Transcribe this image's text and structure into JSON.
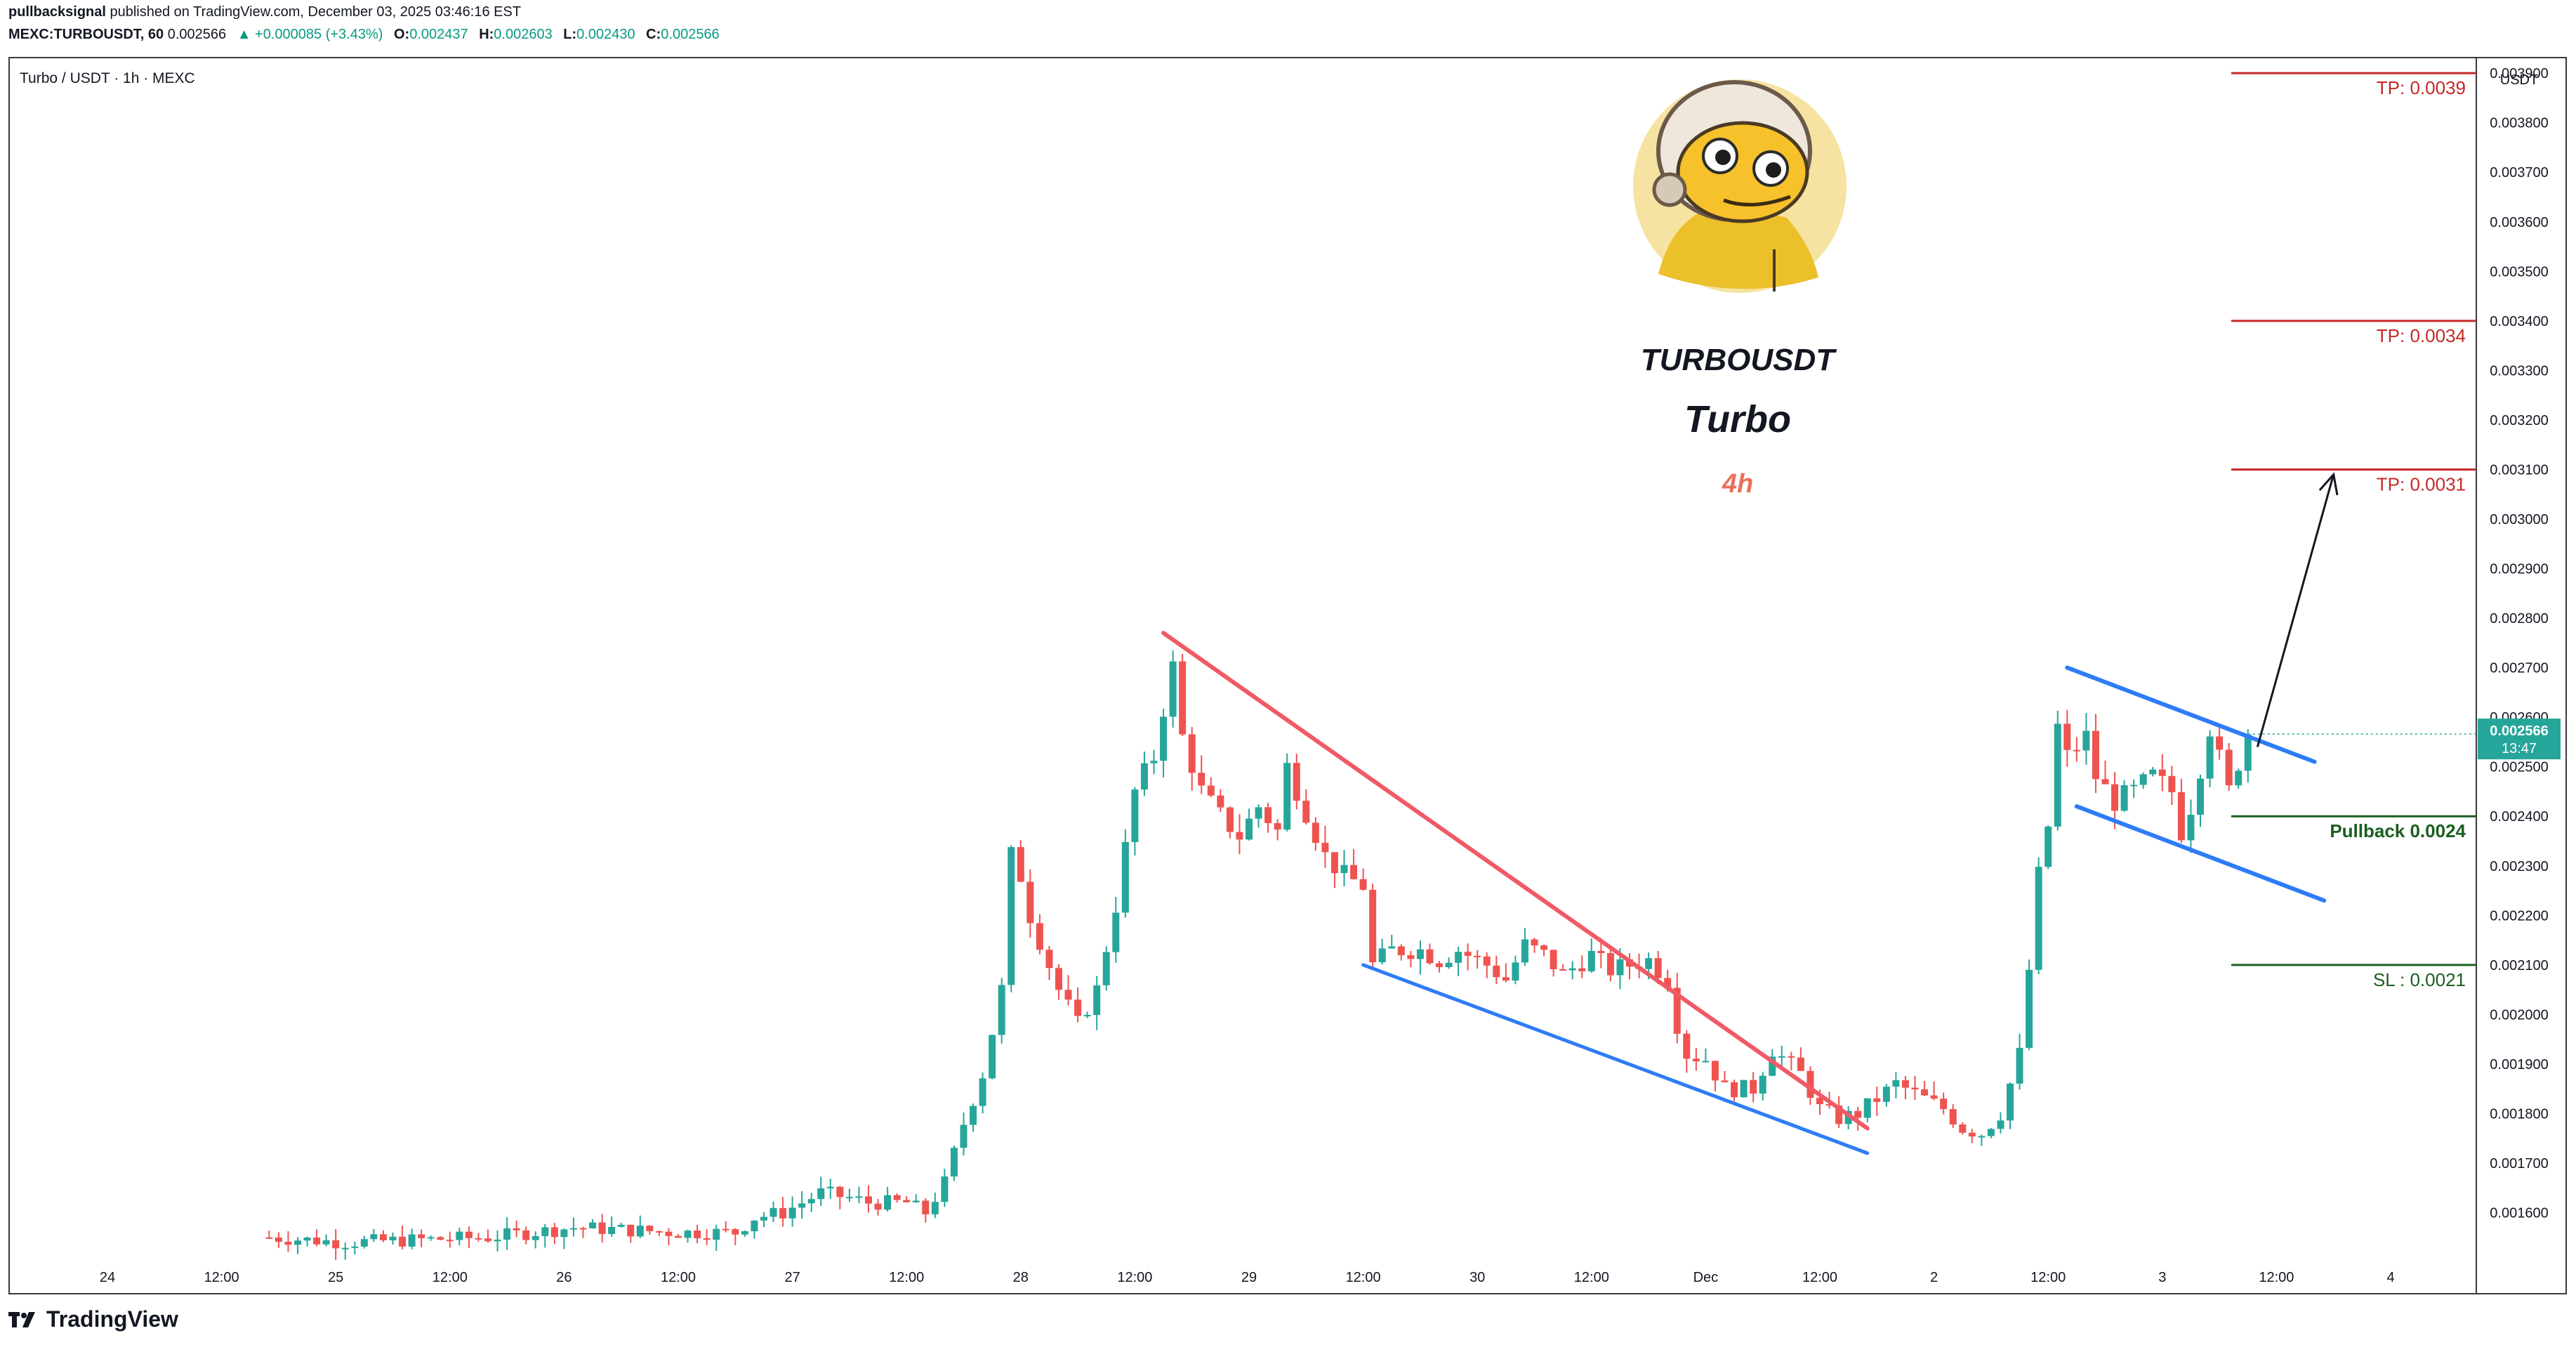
{
  "header": {
    "author": "pullbacksignal",
    "published_text": " published on TradingView.com, December 03, 2025 03:46:16 EST",
    "symbol_line": "MEXC:TURBOUSDT, 60",
    "last_price": "0.002566",
    "change_arrow": "▲",
    "change": "+0.000085 (+3.43%)",
    "o_label": "O:",
    "o_value": "0.002437",
    "h_label": "H:",
    "h_value": "0.002603",
    "l_label": "L:",
    "l_value": "0.002430",
    "c_label": "C:",
    "c_value": "0.002566"
  },
  "pair_label": "Turbo / USDT · 1h · MEXC",
  "currency_label": "USDT",
  "price_tag": {
    "price": "0.002566",
    "countdown": "13:47"
  },
  "logo": {
    "ticker": "TURBOUSDT",
    "name": "Turbo",
    "timeframe": "4h"
  },
  "footer": {
    "brand": "TradingView"
  },
  "colors": {
    "up": "#26a69a",
    "down": "#ef5350",
    "wedge_top": "#f05a66",
    "channel": "#2e7cf6",
    "tp": "#c62828",
    "pullback": "#1b5e20",
    "sl": "#1b5e20"
  },
  "chart_data": {
    "type": "candlestick",
    "title": "",
    "xlabel": "",
    "ylabel": "",
    "ylim": [
      0.00151,
      0.00393
    ],
    "y_ticks": [
      "0.003900",
      "0.003800",
      "0.003700",
      "0.003600",
      "0.003500",
      "0.003400",
      "0.003300",
      "0.003200",
      "0.003100",
      "0.003000",
      "0.002900",
      "0.002800",
      "0.002700",
      "0.002600",
      "0.002500",
      "0.002400",
      "0.002300",
      "0.002200",
      "0.002100",
      "0.002000",
      "0.001900",
      "0.001800",
      "0.001700",
      "0.001600"
    ],
    "x_ticks": [
      {
        "label": "24",
        "t": 0
      },
      {
        "label": "12:00",
        "t": 12
      },
      {
        "label": "25",
        "t": 24
      },
      {
        "label": "12:00",
        "t": 36
      },
      {
        "label": "26",
        "t": 48
      },
      {
        "label": "12:00",
        "t": 60
      },
      {
        "label": "27",
        "t": 72
      },
      {
        "label": "12:00",
        "t": 84
      },
      {
        "label": "28",
        "t": 96
      },
      {
        "label": "12:00",
        "t": 108
      },
      {
        "label": "29",
        "t": 120
      },
      {
        "label": "12:00",
        "t": 132
      },
      {
        "label": "30",
        "t": 144
      },
      {
        "label": "12:00",
        "t": 156
      },
      {
        "label": "Dec",
        "t": 168
      },
      {
        "label": "12:00",
        "t": 180
      },
      {
        "label": "2",
        "t": 192
      },
      {
        "label": "12:00",
        "t": 204
      },
      {
        "label": "3",
        "t": 216
      },
      {
        "label": "12:00",
        "t": 228
      },
      {
        "label": "4",
        "t": 240
      }
    ],
    "candle_anchors": [
      [
        17,
        0.00155
      ],
      [
        25,
        0.00154
      ],
      [
        40,
        0.00155
      ],
      [
        49,
        0.00157
      ],
      [
        60,
        0.00156
      ],
      [
        66,
        0.00156
      ],
      [
        68,
        0.00159
      ],
      [
        71,
        0.0016
      ],
      [
        75,
        0.00164
      ],
      [
        78,
        0.00163
      ],
      [
        80,
        0.00162
      ],
      [
        84,
        0.00162
      ],
      [
        86,
        0.0016
      ],
      [
        88,
        0.00166
      ],
      [
        90,
        0.00178
      ],
      [
        92,
        0.00188
      ],
      [
        94,
        0.00205
      ],
      [
        95,
        0.00232
      ],
      [
        96,
        0.00228
      ],
      [
        97,
        0.0022
      ],
      [
        98,
        0.00215
      ],
      [
        100,
        0.00205
      ],
      [
        102,
        0.00198
      ],
      [
        104,
        0.00205
      ],
      [
        106,
        0.00222
      ],
      [
        108,
        0.00245
      ],
      [
        110,
        0.00252
      ],
      [
        111,
        0.00262
      ],
      [
        112,
        0.0027
      ],
      [
        113,
        0.00256
      ],
      [
        115,
        0.00245
      ],
      [
        117,
        0.0024
      ],
      [
        119,
        0.00236
      ],
      [
        121,
        0.00242
      ],
      [
        123,
        0.00237
      ],
      [
        124,
        0.0025
      ],
      [
        126,
        0.00241
      ],
      [
        128,
        0.00232
      ],
      [
        130,
        0.00228
      ],
      [
        132,
        0.00226
      ],
      [
        133,
        0.0021
      ],
      [
        135,
        0.00213
      ],
      [
        138,
        0.00213
      ],
      [
        140,
        0.00211
      ],
      [
        142,
        0.00213
      ],
      [
        145,
        0.0021
      ],
      [
        147,
        0.00207
      ],
      [
        149,
        0.00214
      ],
      [
        151,
        0.00212
      ],
      [
        153,
        0.00208
      ],
      [
        156,
        0.00212
      ],
      [
        158,
        0.00209
      ],
      [
        160,
        0.0021
      ],
      [
        162,
        0.00211
      ],
      [
        164,
        0.00207
      ],
      [
        165,
        0.00198
      ],
      [
        166,
        0.00192
      ],
      [
        168,
        0.00191
      ],
      [
        170,
        0.00185
      ],
      [
        173,
        0.00185
      ],
      [
        175,
        0.00193
      ],
      [
        178,
        0.00188
      ],
      [
        180,
        0.00181
      ],
      [
        182,
        0.00179
      ],
      [
        184,
        0.0018
      ],
      [
        186,
        0.00183
      ],
      [
        188,
        0.00186
      ],
      [
        190,
        0.00184
      ],
      [
        192,
        0.00182
      ],
      [
        193,
        0.00181
      ],
      [
        195,
        0.00177
      ],
      [
        197,
        0.00176
      ],
      [
        199,
        0.0018
      ],
      [
        201,
        0.00192
      ],
      [
        202,
        0.00209
      ],
      [
        203,
        0.00228
      ],
      [
        204,
        0.00238
      ],
      [
        205,
        0.00258
      ],
      [
        206,
        0.00252
      ],
      [
        208,
        0.00256
      ],
      [
        209,
        0.00248
      ],
      [
        211,
        0.00243
      ],
      [
        213,
        0.00245
      ],
      [
        215,
        0.00248
      ],
      [
        217,
        0.00245
      ],
      [
        218,
        0.00237
      ],
      [
        219,
        0.00242
      ],
      [
        221,
        0.00258
      ],
      [
        223,
        0.00245
      ],
      [
        225,
        0.00257
      ]
    ],
    "annotations": {
      "tp_levels": [
        {
          "label": "TP: 0.0039",
          "price": 0.0039
        },
        {
          "label": "TP: 0.0034",
          "price": 0.0034
        },
        {
          "label": "TP: 0.0031",
          "price": 0.0031
        }
      ],
      "pullback": {
        "label": "Pullback 0.0024",
        "price": 0.0024
      },
      "stop_loss": {
        "label": "SL : 0.0021",
        "price": 0.0021
      },
      "falling_wedge_upper": [
        [
          111,
          0.00277
        ],
        [
          185,
          0.00177
        ]
      ],
      "falling_wedge_lower": [
        [
          132,
          0.0021
        ],
        [
          185,
          0.00172
        ]
      ],
      "flag_upper": [
        [
          206,
          0.0027
        ],
        [
          232,
          0.00251
        ]
      ],
      "flag_lower": [
        [
          207,
          0.00242
        ],
        [
          233,
          0.00223
        ]
      ],
      "target_arrow": [
        [
          226,
          0.00254
        ],
        [
          234,
          0.00309
        ]
      ]
    }
  }
}
